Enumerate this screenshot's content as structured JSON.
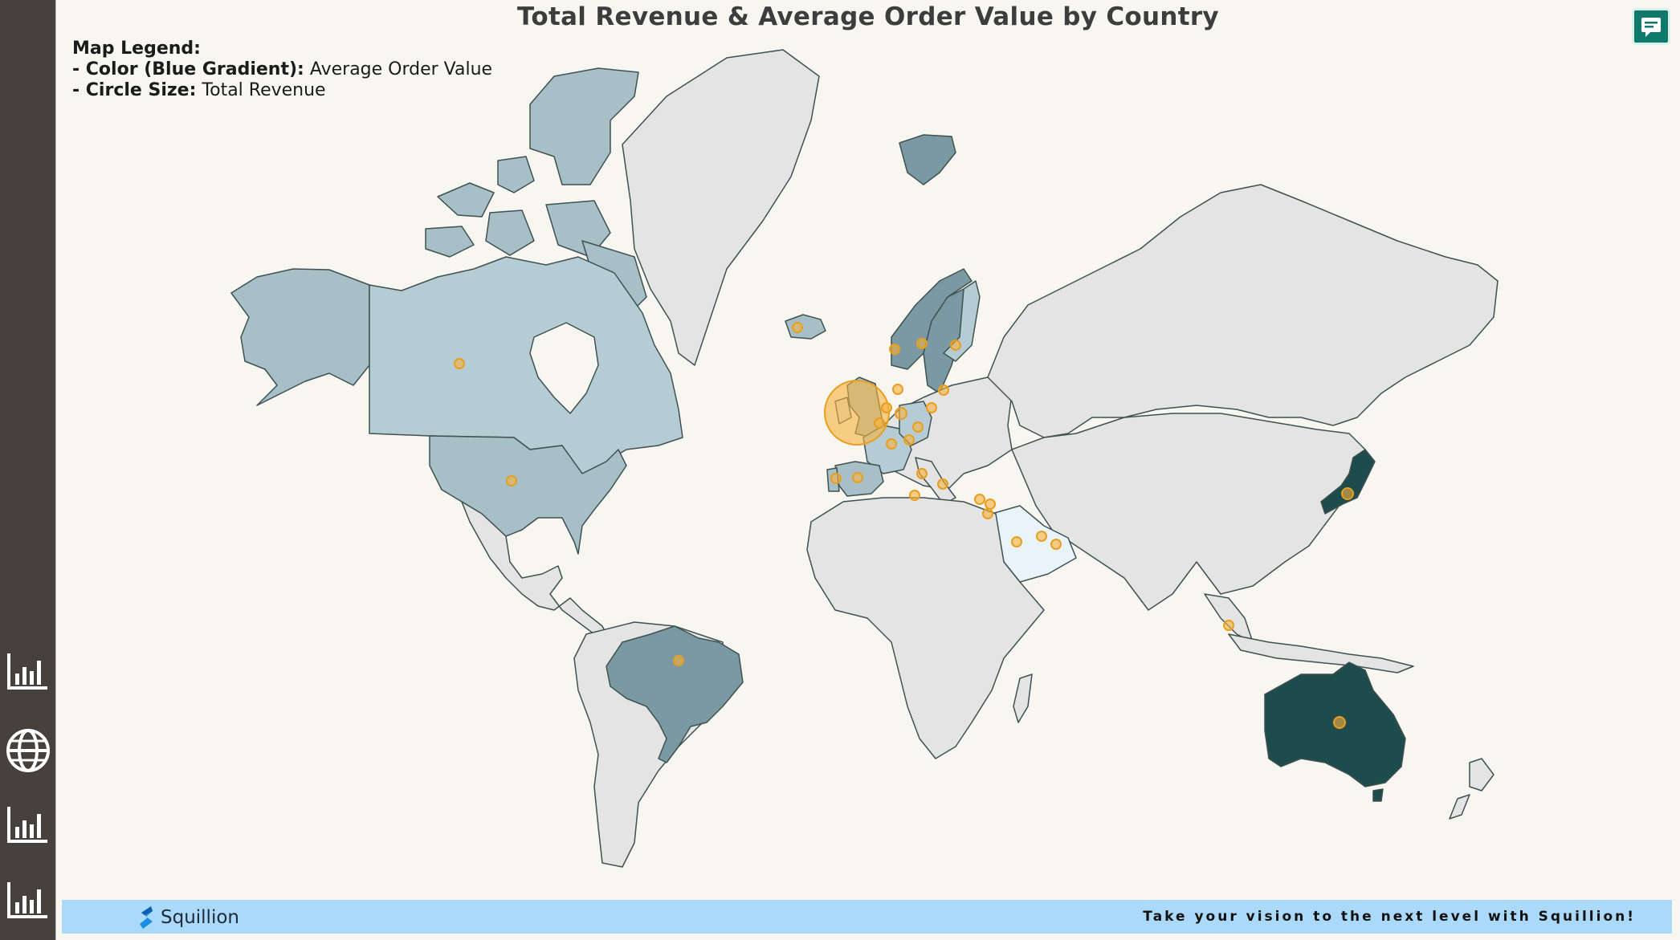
{
  "dashboard": {
    "title": "Total Revenue & Average Order Value by Country",
    "legend": {
      "heading": "Map Legend:",
      "color_key": "- Color (Blue Gradient):",
      "color_value": "Average Order Value",
      "size_key": "- Circle Size:",
      "size_value": "Total Revenue"
    }
  },
  "sidebar": {
    "items": [
      {
        "icon": "bar-chart-icon"
      },
      {
        "icon": "globe-icon"
      },
      {
        "icon": "bar-chart-icon"
      },
      {
        "icon": "bar-chart-icon"
      }
    ]
  },
  "footer": {
    "brand": "Squillion",
    "tagline": "Take your vision to the next level with Squillion!"
  },
  "colors": {
    "sidebar": "#46413d",
    "background": "#f8f6f1",
    "land_default": "#e4e4e4",
    "border": "#3f5150",
    "bubble": "#f7b33c",
    "footer": "#abd9f9",
    "accent_button": "#0f7a6a",
    "aov_scale": [
      "#e8f4fa",
      "#b6ccd4",
      "#a7c0c7",
      "#7b99a2",
      "#1e4b4b"
    ]
  },
  "map_data": {
    "projection": "mercator",
    "countries": [
      {
        "name": "Canada",
        "aov_level": 1
      },
      {
        "name": "United States",
        "aov_level": 2
      },
      {
        "name": "Alaska",
        "aov_level": 2
      },
      {
        "name": "Brazil",
        "aov_level": 3
      },
      {
        "name": "United Kingdom",
        "aov_level": 2
      },
      {
        "name": "Norway",
        "aov_level": 3
      },
      {
        "name": "Sweden",
        "aov_level": 3
      },
      {
        "name": "Finland",
        "aov_level": 1
      },
      {
        "name": "Iceland",
        "aov_level": 2
      },
      {
        "name": "Svalbard",
        "aov_level": 3
      },
      {
        "name": "Spain",
        "aov_level": 2
      },
      {
        "name": "Portugal",
        "aov_level": 2
      },
      {
        "name": "France",
        "aov_level": 1
      },
      {
        "name": "Germany",
        "aov_level": 1
      },
      {
        "name": "Saudi Arabia",
        "aov_level": 0
      },
      {
        "name": "Japan",
        "aov_level": 4
      },
      {
        "name": "Australia",
        "aov_level": 4
      }
    ],
    "bubbles": [
      {
        "name": "United Kingdom",
        "revenue_rank": 1
      },
      {
        "name": "Canada"
      },
      {
        "name": "United States"
      },
      {
        "name": "Brazil"
      },
      {
        "name": "Australia"
      },
      {
        "name": "Japan"
      },
      {
        "name": "Iceland"
      },
      {
        "name": "Norway"
      },
      {
        "name": "Sweden"
      },
      {
        "name": "Finland"
      },
      {
        "name": "Spain"
      },
      {
        "name": "Portugal"
      },
      {
        "name": "France"
      },
      {
        "name": "Germany"
      },
      {
        "name": "Netherlands"
      },
      {
        "name": "Belgium"
      },
      {
        "name": "Switzerland"
      },
      {
        "name": "Austria"
      },
      {
        "name": "Denmark"
      },
      {
        "name": "Poland"
      },
      {
        "name": "Lithuania"
      },
      {
        "name": "Italy"
      },
      {
        "name": "Greece"
      },
      {
        "name": "Malta"
      },
      {
        "name": "Cyprus"
      },
      {
        "name": "Lebanon"
      },
      {
        "name": "Israel"
      },
      {
        "name": "Saudi Arabia"
      },
      {
        "name": "Bahrain"
      },
      {
        "name": "United Arab Emirates"
      },
      {
        "name": "Singapore"
      }
    ]
  }
}
